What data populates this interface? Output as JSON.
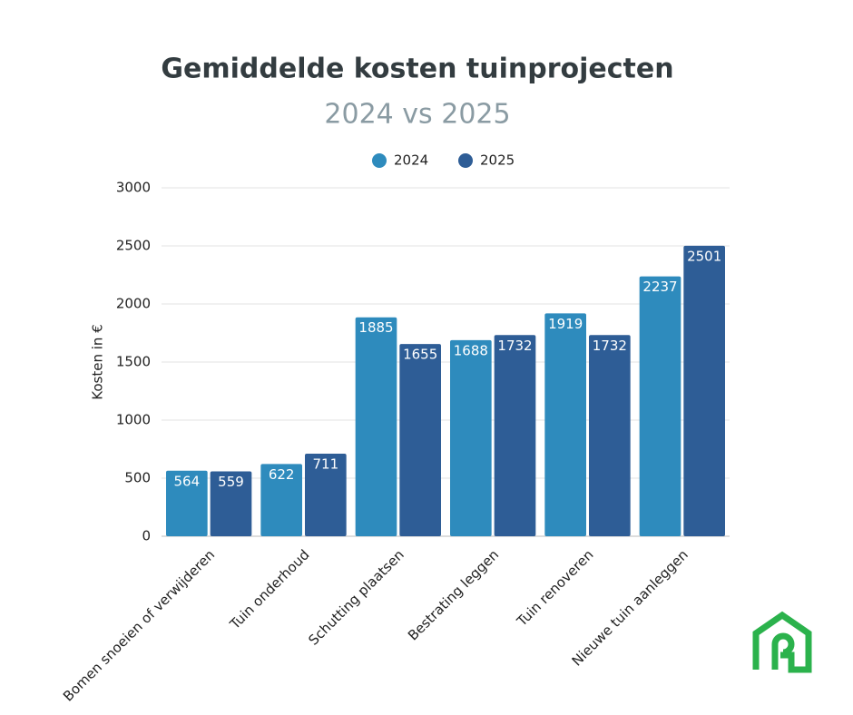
{
  "chart_data": {
    "type": "bar",
    "title": "Gemiddelde kosten tuinprojecten",
    "subtitle": "2024 vs 2025",
    "y_label": "Kosten in €",
    "categories": [
      "Bomen snoeien of verwijderen",
      "Tuin onderhoud",
      "Schutting plaatsen",
      "Bestrating leggen",
      "Tuin renoveren",
      "Nieuwe tuin aanleggen"
    ],
    "series": [
      {
        "name": "2024",
        "color": "#2e8bbd",
        "values": [
          564,
          622,
          1885,
          1688,
          1919,
          2237
        ]
      },
      {
        "name": "2025",
        "color": "#2e5d96",
        "values": [
          559,
          711,
          1655,
          1732,
          1732,
          2501
        ]
      }
    ],
    "ylim": [
      0,
      3000
    ],
    "yticks": [
      0,
      500,
      1000,
      1500,
      2000,
      2500,
      3000
    ],
    "grid": true,
    "legend": "top"
  }
}
